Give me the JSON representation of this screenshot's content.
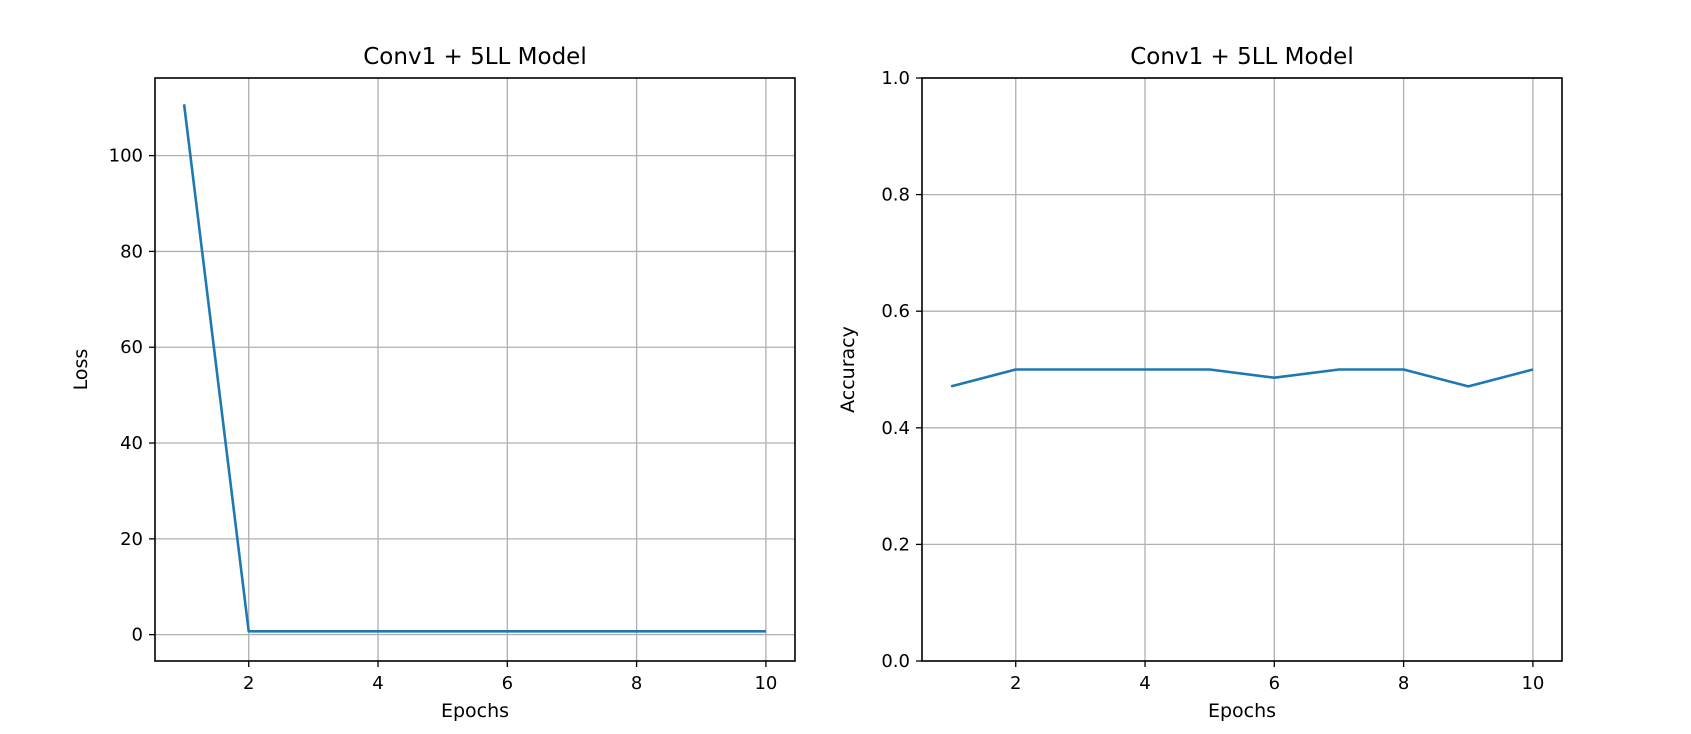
{
  "figure": {
    "line_color": "#1f77b4",
    "grid_color": "#b0b0b0"
  },
  "chart_data": [
    {
      "type": "line",
      "title": "Conv1 + 5LL Model",
      "xlabel": "Epochs",
      "ylabel": "Loss",
      "xlim": [
        0.55,
        10.45
      ],
      "ylim": [
        -5.5,
        116.2
      ],
      "xticks": [
        2,
        4,
        6,
        8,
        10
      ],
      "xtick_labels": [
        "2",
        "4",
        "6",
        "8",
        "10"
      ],
      "yticks": [
        0,
        20,
        40,
        60,
        80,
        100
      ],
      "ytick_labels": [
        "0",
        "20",
        "40",
        "60",
        "80",
        "100"
      ],
      "grid": true,
      "series": [
        {
          "x": [
            1,
            2,
            3,
            4,
            5,
            6,
            7,
            8,
            9,
            10
          ],
          "y": [
            110.7,
            0.7,
            0.7,
            0.7,
            0.7,
            0.7,
            0.7,
            0.7,
            0.7,
            0.7
          ]
        }
      ]
    },
    {
      "type": "line",
      "title": "Conv1 + 5LL Model",
      "xlabel": "Epochs",
      "ylabel": "Accuracy",
      "xlim": [
        0.55,
        10.45
      ],
      "ylim": [
        0.0,
        1.0
      ],
      "xticks": [
        2,
        4,
        6,
        8,
        10
      ],
      "xtick_labels": [
        "2",
        "4",
        "6",
        "8",
        "10"
      ],
      "yticks": [
        0.0,
        0.2,
        0.4,
        0.6,
        0.8,
        1.0
      ],
      "ytick_labels": [
        "0.0",
        "0.2",
        "0.4",
        "0.6",
        "0.8",
        "1.0"
      ],
      "grid": true,
      "series": [
        {
          "x": [
            1,
            2,
            3,
            4,
            5,
            6,
            7,
            8,
            9,
            10
          ],
          "y": [
            0.471,
            0.5,
            0.5,
            0.5,
            0.5,
            0.486,
            0.5,
            0.5,
            0.471,
            0.5
          ]
        }
      ]
    }
  ]
}
